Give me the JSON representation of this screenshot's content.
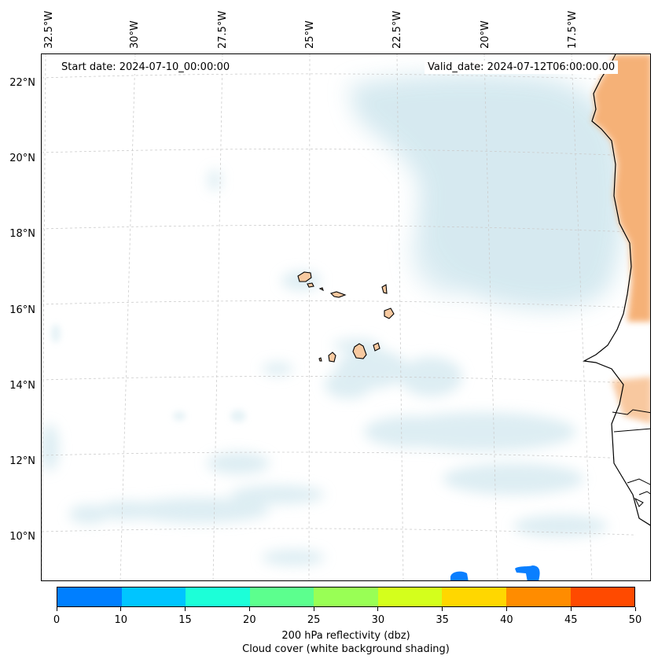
{
  "map": {
    "start_date": "Start date: 2024-07-10_00:00:00",
    "valid_date": "Valid_date: 2024-07-12T06:00:00.00",
    "lat_labels": [
      "22°N",
      "20°N",
      "18°N",
      "16°N",
      "14°N",
      "12°N",
      "10°N"
    ],
    "lon_labels": [
      "32.5°W",
      "30°W",
      "27.5°W",
      "25°W",
      "22.5°W",
      "20°W",
      "17.5°W"
    ],
    "places": [
      "Cape Verde islands",
      "West African coast"
    ]
  },
  "colorbar": {
    "ticks": [
      "0",
      "10",
      "15",
      "20",
      "25",
      "30",
      "35",
      "40",
      "45",
      "50"
    ],
    "colors": [
      "#007fff",
      "#00c5ff",
      "#1cffd8",
      "#5cff8e",
      "#99ff55",
      "#d4ff1c",
      "#ffd700",
      "#ff8c00",
      "#ff4a00"
    ],
    "title": "200 hPa reflectivity (dbz)",
    "subtitle": "Cloud cover (white background shading)"
  },
  "colors": {
    "cloud": "#cfe6ee",
    "land": "#f4a460",
    "reflectivity_blue": "#0a7fff"
  }
}
